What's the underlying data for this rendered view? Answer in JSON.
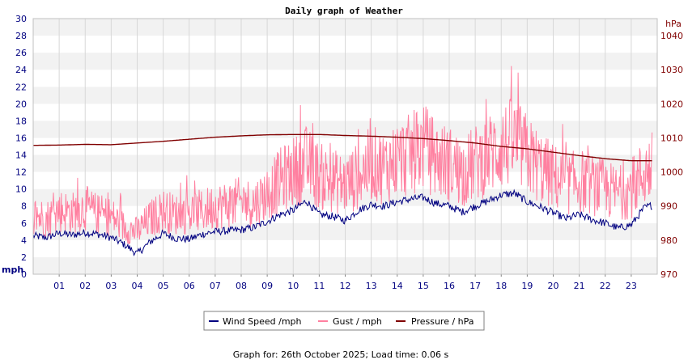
{
  "chart_data": {
    "type": "line",
    "title": "Daily graph of Weather",
    "ylabel_left": "mph",
    "ylabel_right": "hPa",
    "ylim_left": [
      0,
      30
    ],
    "ylim_right": [
      970,
      1045
    ],
    "left_ticks": [
      "0",
      "2",
      "4",
      "6",
      "8",
      "10",
      "12",
      "14",
      "16",
      "18",
      "20",
      "22",
      "24",
      "26",
      "28",
      "30"
    ],
    "right_ticks": [
      "970",
      "980",
      "990",
      "1000",
      "1010",
      "1020",
      "1030",
      "1040"
    ],
    "x_ticks": [
      "01",
      "02",
      "03",
      "04",
      "05",
      "06",
      "07",
      "08",
      "09",
      "10",
      "11",
      "12",
      "13",
      "14",
      "15",
      "16",
      "17",
      "18",
      "19",
      "20",
      "21",
      "22",
      "23"
    ],
    "xlim": [
      0,
      24
    ],
    "grid": true,
    "legend_position": "bottom-center",
    "series": [
      {
        "name": "Wind Speed /mph",
        "color": "#000080",
        "axis": "left",
        "x": [
          0,
          0.5,
          1,
          1.5,
          2,
          2.5,
          3,
          3.5,
          4,
          4.5,
          5,
          5.5,
          6,
          6.5,
          7,
          7.5,
          8,
          8.5,
          9,
          9.5,
          10,
          10.5,
          11,
          11.5,
          12,
          12.5,
          13,
          13.5,
          14,
          14.5,
          15,
          15.5,
          16,
          16.5,
          17,
          17.5,
          18,
          18.5,
          19,
          19.5,
          20,
          20.5,
          21,
          21.5,
          22,
          22.5,
          23,
          23.5,
          23.8
        ],
        "values": [
          4.5,
          4.3,
          4.8,
          4.6,
          4.9,
          4.7,
          4.3,
          3.5,
          2.4,
          3.8,
          4.8,
          4.2,
          4.1,
          4.7,
          5.0,
          5.1,
          5.2,
          5.5,
          6.2,
          7.0,
          7.5,
          8.6,
          7.0,
          6.8,
          6.3,
          7.5,
          8.2,
          8.0,
          8.5,
          8.8,
          9.0,
          8.3,
          8.0,
          7.3,
          8.0,
          8.6,
          9.3,
          9.5,
          8.5,
          7.9,
          7.2,
          6.5,
          7.0,
          6.4,
          6.0,
          5.4,
          5.8,
          7.8,
          8.1
        ]
      },
      {
        "name": "Gust / mph",
        "color": "#ff80a0",
        "axis": "left",
        "x": [
          0,
          0.5,
          1,
          1.5,
          2,
          2.5,
          3,
          3.5,
          4,
          4.5,
          5,
          5.5,
          6,
          6.5,
          7,
          7.5,
          8,
          8.5,
          9,
          9.5,
          10,
          10.5,
          11,
          11.5,
          12,
          12.5,
          13,
          13.5,
          14,
          14.5,
          15,
          15.5,
          16,
          16.5,
          17,
          17.5,
          18,
          18.5,
          19,
          19.5,
          20,
          20.5,
          21,
          21.5,
          22,
          22.5,
          23,
          23.5,
          23.8
        ],
        "values": [
          7.0,
          6.5,
          7.5,
          7.2,
          7.8,
          7.0,
          6.8,
          5.5,
          5.0,
          6.5,
          7.5,
          7.0,
          7.2,
          7.4,
          8.0,
          8.2,
          8.5,
          8.3,
          9.5,
          11.0,
          12.0,
          13.0,
          11.5,
          11.0,
          10.5,
          11.5,
          13.0,
          12.5,
          13.5,
          14.0,
          15.0,
          13.5,
          13.0,
          12.0,
          13.0,
          14.0,
          15.0,
          15.5,
          14.0,
          12.5,
          11.5,
          10.5,
          11.0,
          10.5,
          10.0,
          9.5,
          10.0,
          12.0,
          12.5
        ]
      },
      {
        "name": "Pressure / hPa",
        "color": "#800000",
        "axis": "right",
        "x": [
          0,
          1,
          2,
          3,
          4,
          5,
          6,
          7,
          8,
          9,
          10,
          11,
          12,
          13,
          14,
          15,
          16,
          17,
          18,
          19,
          20,
          21,
          22,
          23,
          23.8
        ],
        "values": [
          1007.8,
          1007.9,
          1008.1,
          1008.0,
          1008.5,
          1009.0,
          1009.6,
          1010.2,
          1010.6,
          1010.9,
          1011.0,
          1011.0,
          1010.7,
          1010.5,
          1010.2,
          1009.8,
          1009.2,
          1008.5,
          1007.5,
          1006.8,
          1005.8,
          1004.8,
          1003.9,
          1003.3,
          1003.3
        ]
      }
    ]
  },
  "legend": {
    "wind": "Wind Speed /mph",
    "gust": "Gust / mph",
    "pressure": "Pressure / hPa"
  },
  "footer": "Graph for: 26th October 2025; Load time: 0.06 s"
}
